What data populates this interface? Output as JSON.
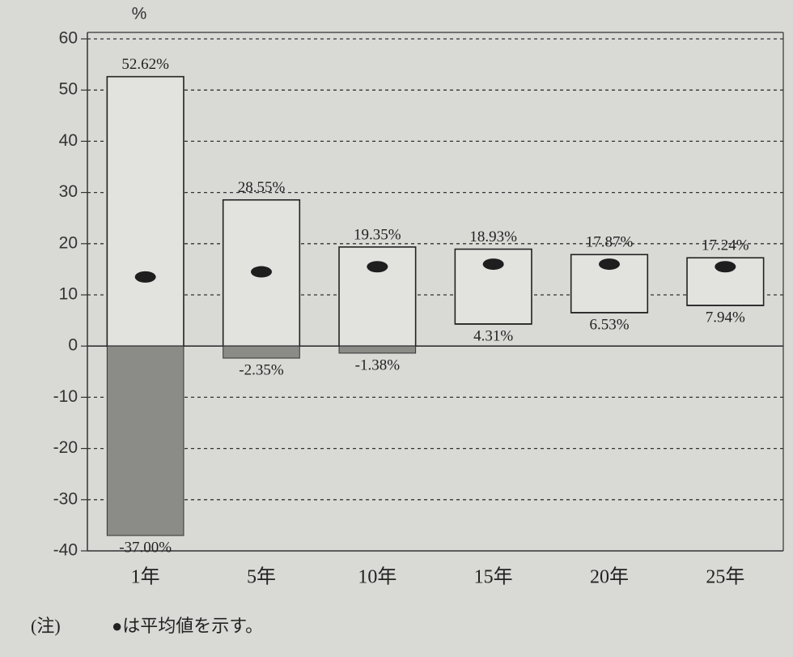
{
  "chart_data": {
    "type": "floating_bar",
    "y_label": "%",
    "categories": [
      "1年",
      "5年",
      "10年",
      "15年",
      "20年",
      "25年"
    ],
    "high": {
      "values": [
        52.62,
        28.55,
        19.35,
        18.93,
        17.87,
        17.24
      ],
      "value_labels": [
        "52.62%",
        "28.55%",
        "19.35%",
        "18.93%",
        "17.87%",
        "17.24%"
      ]
    },
    "low": {
      "values": [
        -37.0,
        -2.35,
        -1.38,
        4.31,
        6.53,
        7.94
      ],
      "value_labels": [
        "-37.00%",
        "-2.35%",
        "-1.38%",
        "4.31%",
        "6.53%",
        "7.94%"
      ]
    },
    "mean": {
      "values": [
        13.5,
        14.5,
        15.5,
        16.0,
        16.0,
        15.5
      ],
      "color": "#1e1e1e"
    },
    "ylim": [
      -40,
      60
    ],
    "yticks": [
      -40,
      -30,
      -20,
      -10,
      0,
      10,
      20,
      30,
      40,
      50,
      60
    ],
    "grid": true,
    "negative_fill": "#8b8b88",
    "note_label": "(注)",
    "note": "●は平均値を示す。"
  }
}
